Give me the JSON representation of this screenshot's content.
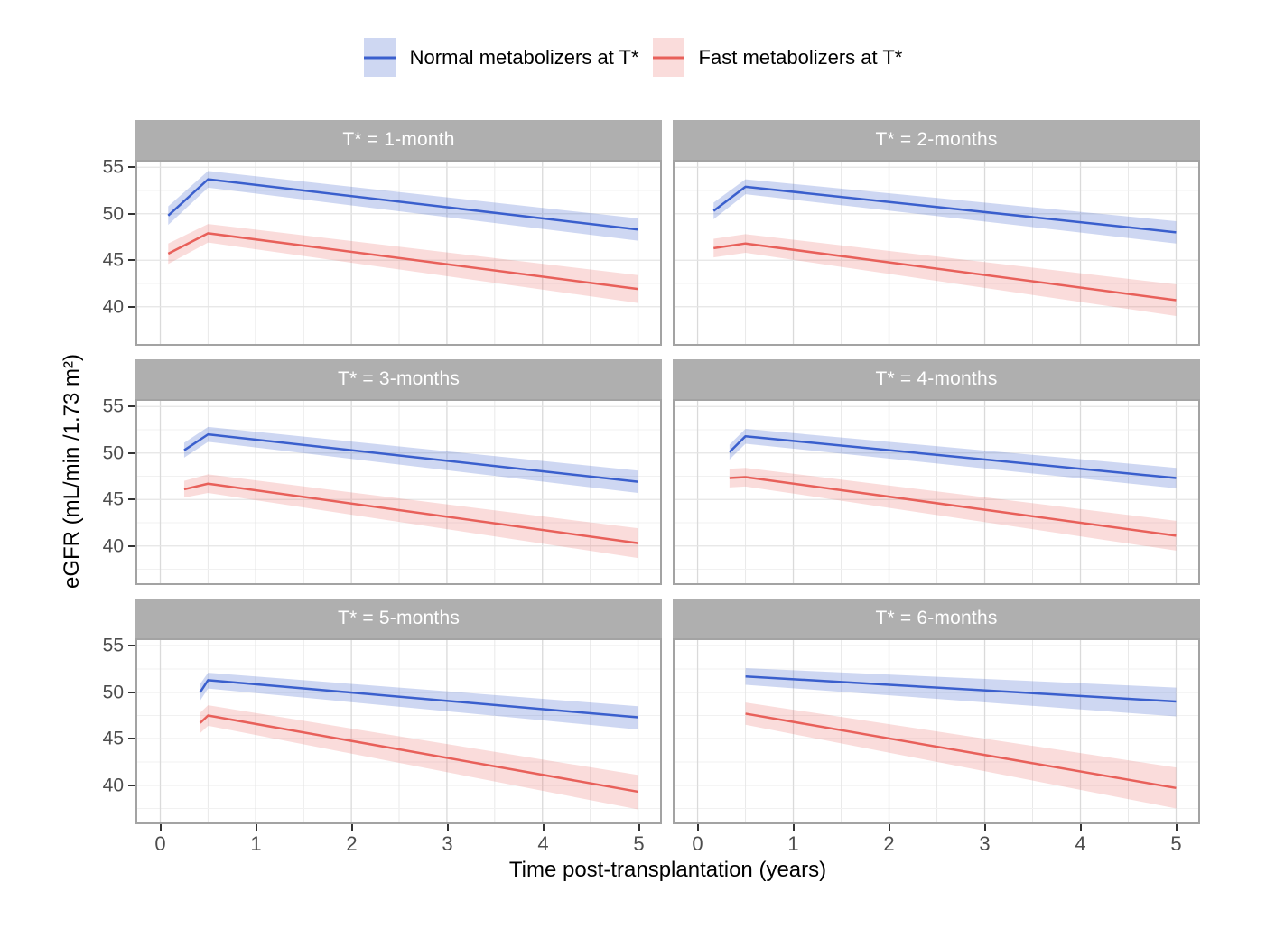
{
  "figure": {
    "background": "#ffffff"
  },
  "legend": {
    "items": [
      {
        "key": "normal",
        "label": "Normal metabolizers at T*"
      },
      {
        "key": "fast",
        "label": "Fast metabolizers at T*"
      }
    ]
  },
  "axes": {
    "x_title": "Time post-transplantation (years)",
    "y_title": "eGFR (mL/min /1.73 m²)"
  },
  "style": {
    "normal_line": "#3A5FCD",
    "normal_fill": "rgba(59,95,205,0.25)",
    "fast_line": "#E8605A",
    "fast_fill": "rgba(232,96,90,0.22)",
    "strip_bg": "#AFAFAF",
    "strip_text": "#FFFFFF",
    "panel_border": "#A3A3A3",
    "grid_major_x": "#DADADA",
    "grid_minor_x": "#E9E9E9",
    "grid_major_y": "#E4E4E4",
    "grid_minor_y": "#F1F1F1",
    "tick_label": "#4D4D4D",
    "tick_mark": "#333333"
  },
  "chart_data": {
    "type": "line",
    "x_range": [
      -0.26,
      5.25
    ],
    "y_range": [
      35.8,
      55.8
    ],
    "x_major_ticks": [
      0,
      1,
      2,
      3,
      4,
      5
    ],
    "x_minor_ticks": [
      0.5,
      1.5,
      2.5,
      3.5,
      4.5
    ],
    "y_major_ticks": [
      40,
      45,
      50,
      55
    ],
    "y_minor_ticks": [
      37.5,
      42.5,
      47.5,
      52.5
    ],
    "series_names": [
      "Normal metabolizers at T*",
      "Fast metabolizers at T*"
    ],
    "facets": [
      {
        "title": "T* = 1-month",
        "series": [
          {
            "name": "Normal metabolizers at T*",
            "x": [
              0.083,
              0.5,
              5
            ],
            "y": [
              49.8,
              53.7,
              48.3
            ],
            "lower": [
              48.8,
              52.8,
              47.1
            ],
            "upper": [
              50.8,
              54.6,
              49.5
            ]
          },
          {
            "name": "Fast metabolizers at T*",
            "x": [
              0.083,
              0.5,
              5
            ],
            "y": [
              45.7,
              47.9,
              41.9
            ],
            "lower": [
              44.6,
              46.9,
              40.4
            ],
            "upper": [
              46.8,
              48.9,
              43.4
            ]
          }
        ]
      },
      {
        "title": "T* = 2-months",
        "series": [
          {
            "name": "Normal metabolizers at T*",
            "x": [
              0.167,
              0.5,
              5
            ],
            "y": [
              50.3,
              52.9,
              48.0
            ],
            "lower": [
              49.4,
              52.1,
              46.8
            ],
            "upper": [
              51.2,
              53.7,
              49.2
            ]
          },
          {
            "name": "Fast metabolizers at T*",
            "x": [
              0.167,
              0.5,
              5
            ],
            "y": [
              46.3,
              46.8,
              40.7
            ],
            "lower": [
              45.3,
              45.8,
              39.0
            ],
            "upper": [
              47.3,
              47.8,
              42.4
            ]
          }
        ]
      },
      {
        "title": "T* = 3-months",
        "series": [
          {
            "name": "Normal metabolizers at T*",
            "x": [
              0.25,
              0.5,
              5
            ],
            "y": [
              50.3,
              52.0,
              46.9
            ],
            "lower": [
              49.5,
              51.2,
              45.7
            ],
            "upper": [
              51.1,
              52.8,
              48.1
            ]
          },
          {
            "name": "Fast metabolizers at T*",
            "x": [
              0.25,
              0.5,
              5
            ],
            "y": [
              46.1,
              46.7,
              40.3
            ],
            "lower": [
              45.2,
              45.7,
              38.7
            ],
            "upper": [
              47.0,
              47.7,
              41.9
            ]
          }
        ]
      },
      {
        "title": "T* = 4-months",
        "series": [
          {
            "name": "Normal metabolizers at T*",
            "x": [
              0.333,
              0.5,
              5
            ],
            "y": [
              50.1,
              51.8,
              47.3
            ],
            "lower": [
              49.3,
              51.0,
              46.2
            ],
            "upper": [
              50.9,
              52.6,
              48.4
            ]
          },
          {
            "name": "Fast metabolizers at T*",
            "x": [
              0.333,
              0.5,
              5
            ],
            "y": [
              47.3,
              47.4,
              41.1
            ],
            "lower": [
              46.3,
              46.4,
              39.5
            ],
            "upper": [
              48.3,
              48.4,
              42.7
            ]
          }
        ]
      },
      {
        "title": "T* = 5-months",
        "series": [
          {
            "name": "Normal metabolizers at T*",
            "x": [
              0.417,
              0.5,
              5
            ],
            "y": [
              50.0,
              51.3,
              47.3
            ],
            "lower": [
              49.1,
              50.4,
              46.0
            ],
            "upper": [
              50.9,
              52.1,
              48.5
            ]
          },
          {
            "name": "Fast metabolizers at T*",
            "x": [
              0.417,
              0.5,
              5
            ],
            "y": [
              46.7,
              47.5,
              39.3
            ],
            "lower": [
              45.6,
              46.4,
              37.4
            ],
            "upper": [
              47.8,
              48.6,
              41.1
            ]
          }
        ]
      },
      {
        "title": "T* = 6-months",
        "series": [
          {
            "name": "Normal metabolizers at T*",
            "x": [
              0.5,
              5
            ],
            "y": [
              51.7,
              49.0
            ],
            "lower": [
              50.8,
              47.4
            ],
            "upper": [
              52.6,
              50.5
            ]
          },
          {
            "name": "Fast metabolizers at T*",
            "x": [
              0.5,
              5
            ],
            "y": [
              47.7,
              39.7
            ],
            "lower": [
              46.5,
              37.5
            ],
            "upper": [
              48.9,
              41.9
            ]
          }
        ]
      }
    ]
  }
}
